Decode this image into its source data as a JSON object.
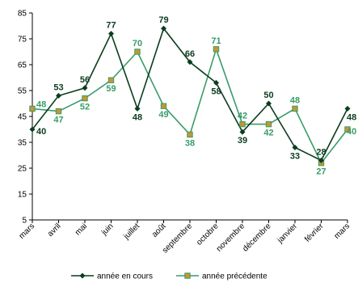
{
  "chart_data": {
    "type": "line",
    "categories": [
      "mars",
      "avril",
      "mai",
      "juin",
      "juillet",
      "août",
      "septembre",
      "octobre",
      "novembre",
      "décembre",
      "janvier",
      "février",
      "mars"
    ],
    "series": [
      {
        "name": "année en cours",
        "values": [
          40,
          53,
          56,
          77,
          48,
          79,
          66,
          58,
          39,
          50,
          33,
          28,
          48
        ],
        "color": "#0b3d1e",
        "marker": "diamond"
      },
      {
        "name": "année précédente",
        "values": [
          48,
          47,
          52,
          59,
          70,
          49,
          38,
          71,
          42,
          42,
          48,
          27,
          40
        ],
        "color": "#3a9b6b",
        "marker": "square"
      }
    ],
    "y_ticks": [
      5,
      15,
      25,
      35,
      45,
      55,
      65,
      75,
      85
    ],
    "ylim": [
      5,
      85
    ],
    "grid": false,
    "legend_position": "bottom",
    "marker_fill_prev": "#c8962e"
  }
}
